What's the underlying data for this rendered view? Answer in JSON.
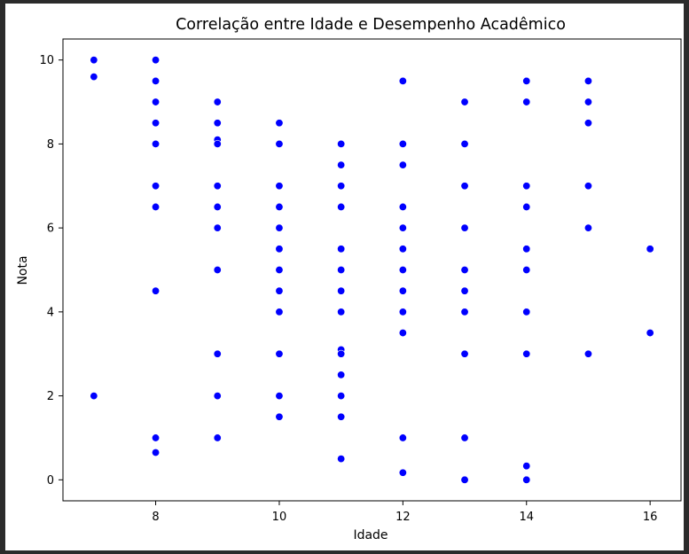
{
  "chart_data": {
    "type": "scatter",
    "title": "Correlação entre Idade e Desempenho Acadêmico",
    "xlabel": "Idade",
    "ylabel": "Nota",
    "xlim": [
      6.5,
      16.5
    ],
    "ylim": [
      -0.5,
      10.5
    ],
    "xticks": [
      8,
      10,
      12,
      14,
      16
    ],
    "yticks": [
      0,
      2,
      4,
      6,
      8,
      10
    ],
    "grid": false,
    "point_color": "#0000ff",
    "series": [
      {
        "points": [
          [
            7,
            10
          ],
          [
            7,
            9.6
          ],
          [
            7,
            2
          ],
          [
            8,
            10
          ],
          [
            8,
            9.5
          ],
          [
            8,
            9
          ],
          [
            8,
            8.5
          ],
          [
            8,
            8
          ],
          [
            8,
            7
          ],
          [
            8,
            6.5
          ],
          [
            8,
            4.5
          ],
          [
            8,
            1
          ],
          [
            8,
            0.65
          ],
          [
            9,
            9
          ],
          [
            9,
            8.5
          ],
          [
            9,
            8.1
          ],
          [
            9,
            8
          ],
          [
            9,
            7
          ],
          [
            9,
            6.5
          ],
          [
            9,
            6
          ],
          [
            9,
            5
          ],
          [
            9,
            3
          ],
          [
            9,
            2
          ],
          [
            9,
            1
          ],
          [
            10,
            8.5
          ],
          [
            10,
            8
          ],
          [
            10,
            7
          ],
          [
            10,
            6.5
          ],
          [
            10,
            6
          ],
          [
            10,
            5.5
          ],
          [
            10,
            5
          ],
          [
            10,
            4.5
          ],
          [
            10,
            4
          ],
          [
            10,
            3
          ],
          [
            10,
            2
          ],
          [
            10,
            1.5
          ],
          [
            11,
            8
          ],
          [
            11,
            7.5
          ],
          [
            11,
            7
          ],
          [
            11,
            6.5
          ],
          [
            11,
            5.5
          ],
          [
            11,
            5
          ],
          [
            11,
            4.5
          ],
          [
            11,
            4
          ],
          [
            11,
            3.1
          ],
          [
            11,
            3
          ],
          [
            11,
            2.5
          ],
          [
            11,
            2
          ],
          [
            11,
            1.5
          ],
          [
            11,
            0.5
          ],
          [
            12,
            9.5
          ],
          [
            12,
            8
          ],
          [
            12,
            7.5
          ],
          [
            12,
            6.5
          ],
          [
            12,
            6
          ],
          [
            12,
            5.5
          ],
          [
            12,
            5
          ],
          [
            12,
            4.5
          ],
          [
            12,
            4
          ],
          [
            12,
            3.5
          ],
          [
            12,
            1
          ],
          [
            12,
            0.17
          ],
          [
            13,
            9
          ],
          [
            13,
            8
          ],
          [
            13,
            7
          ],
          [
            13,
            6
          ],
          [
            13,
            5
          ],
          [
            13,
            4.5
          ],
          [
            13,
            4
          ],
          [
            13,
            3
          ],
          [
            13,
            1
          ],
          [
            13,
            0
          ],
          [
            14,
            9.5
          ],
          [
            14,
            9
          ],
          [
            14,
            7
          ],
          [
            14,
            6.5
          ],
          [
            14,
            5.5
          ],
          [
            14,
            5
          ],
          [
            14,
            4
          ],
          [
            14,
            3
          ],
          [
            14,
            0.33
          ],
          [
            14,
            0
          ],
          [
            15,
            9.5
          ],
          [
            15,
            9
          ],
          [
            15,
            8.5
          ],
          [
            15,
            7
          ],
          [
            15,
            6
          ],
          [
            15,
            3
          ],
          [
            16,
            5.5
          ],
          [
            16,
            3.5
          ]
        ]
      }
    ]
  }
}
